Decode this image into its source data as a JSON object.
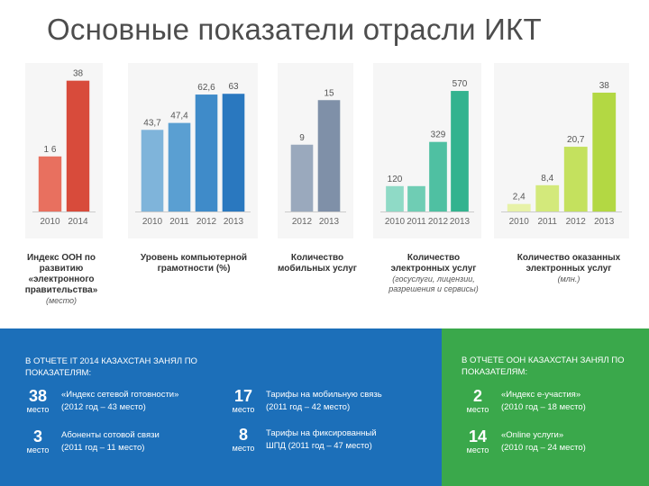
{
  "title": "Основные показатели отрасли ИКТ",
  "chart_data": [
    {
      "type": "bar",
      "categories": [
        "2010",
        "2014"
      ],
      "values": [
        16,
        38
      ],
      "value_labels": [
        "1 6",
        "38"
      ],
      "colors": [
        "#e8705f",
        "#d84b3b"
      ],
      "ylim": [
        0,
        40
      ],
      "title": "Индекс ООН по развитию «электронного правительства»",
      "subtitle": "(место)"
    },
    {
      "type": "bar",
      "categories": [
        "2010",
        "2011",
        "2012",
        "2013"
      ],
      "values": [
        43.7,
        47.4,
        62.6,
        63
      ],
      "value_labels": [
        "43,7",
        "47,4",
        "62,6",
        "63"
      ],
      "colors": [
        "#7fb4da",
        "#5a9fd2",
        "#3f8bc9",
        "#2a78bf"
      ],
      "ylim": [
        0,
        66
      ],
      "title": "Уровень компьютерной грамотности (%)",
      "subtitle": ""
    },
    {
      "type": "bar",
      "categories": [
        "2012",
        "2013"
      ],
      "values": [
        9,
        15
      ],
      "value_labels": [
        "9",
        "15"
      ],
      "colors": [
        "#9aa9bd",
        "#7f90a8"
      ],
      "ylim": [
        0,
        16
      ],
      "title": "Количество мобильных услуг",
      "subtitle": ""
    },
    {
      "type": "bar",
      "categories": [
        "2010",
        "2011",
        "2012",
        "2013"
      ],
      "values": [
        120,
        120,
        329,
        570
      ],
      "value_labels": [
        "120",
        "",
        "329",
        "570"
      ],
      "colors": [
        "#8fdac6",
        "#6fcdb4",
        "#4fc0a2",
        "#33b38f"
      ],
      "ylim": [
        0,
        600
      ],
      "title": "Количество электронных услуг",
      "subtitle": "(госуслуги, лицензии, разрешения и сервисы)"
    },
    {
      "type": "bar",
      "categories": [
        "2010",
        "2011",
        "2012",
        "2013"
      ],
      "values": [
        2.4,
        8.4,
        20.7,
        38
      ],
      "value_labels": [
        "2,4",
        "8,4",
        "20,7",
        "38"
      ],
      "colors": [
        "#e7f2a8",
        "#d3e97b",
        "#c4e15e",
        "#b3d843"
      ],
      "ylim": [
        0,
        40
      ],
      "title": "Количество оказанных электронных услуг",
      "subtitle": "(млн.)"
    }
  ],
  "it_report": {
    "heading": "В ОТЧЕТЕ IT 2014 КАЗАХСТАН ЗАНЯЛ ПО ПОКАЗАТЕЛЯМ:",
    "items": [
      {
        "rank": "38",
        "place": "место",
        "label": "«Индекс сетевой готовности»",
        "detail": "(2012 год – 43 место)"
      },
      {
        "rank": "17",
        "place": "место",
        "label": "Тарифы на мобильную связь",
        "detail": "(2011 год – 42 место)"
      },
      {
        "rank": "3",
        "place": "место",
        "label": "Абоненты сотовой связи",
        "detail": "(2011 год – 11 место)"
      },
      {
        "rank": "8",
        "place": "место",
        "label": "Тарифы на фиксированный",
        "detail": "ШПД (2011 год – 47 место)"
      }
    ]
  },
  "un_report": {
    "heading": "В ОТЧЕТЕ ООН КАЗАХСТАН ЗАНЯЛ ПО ПОКАЗАТЕЛЯМ:",
    "items": [
      {
        "rank": "2",
        "place": "место",
        "label": "«Индекс e-участия»",
        "detail": "(2010 год – 18 место)"
      },
      {
        "rank": "14",
        "place": "место",
        "label": "«Online услуги»",
        "detail": "(2010 год – 24 место)"
      }
    ]
  }
}
